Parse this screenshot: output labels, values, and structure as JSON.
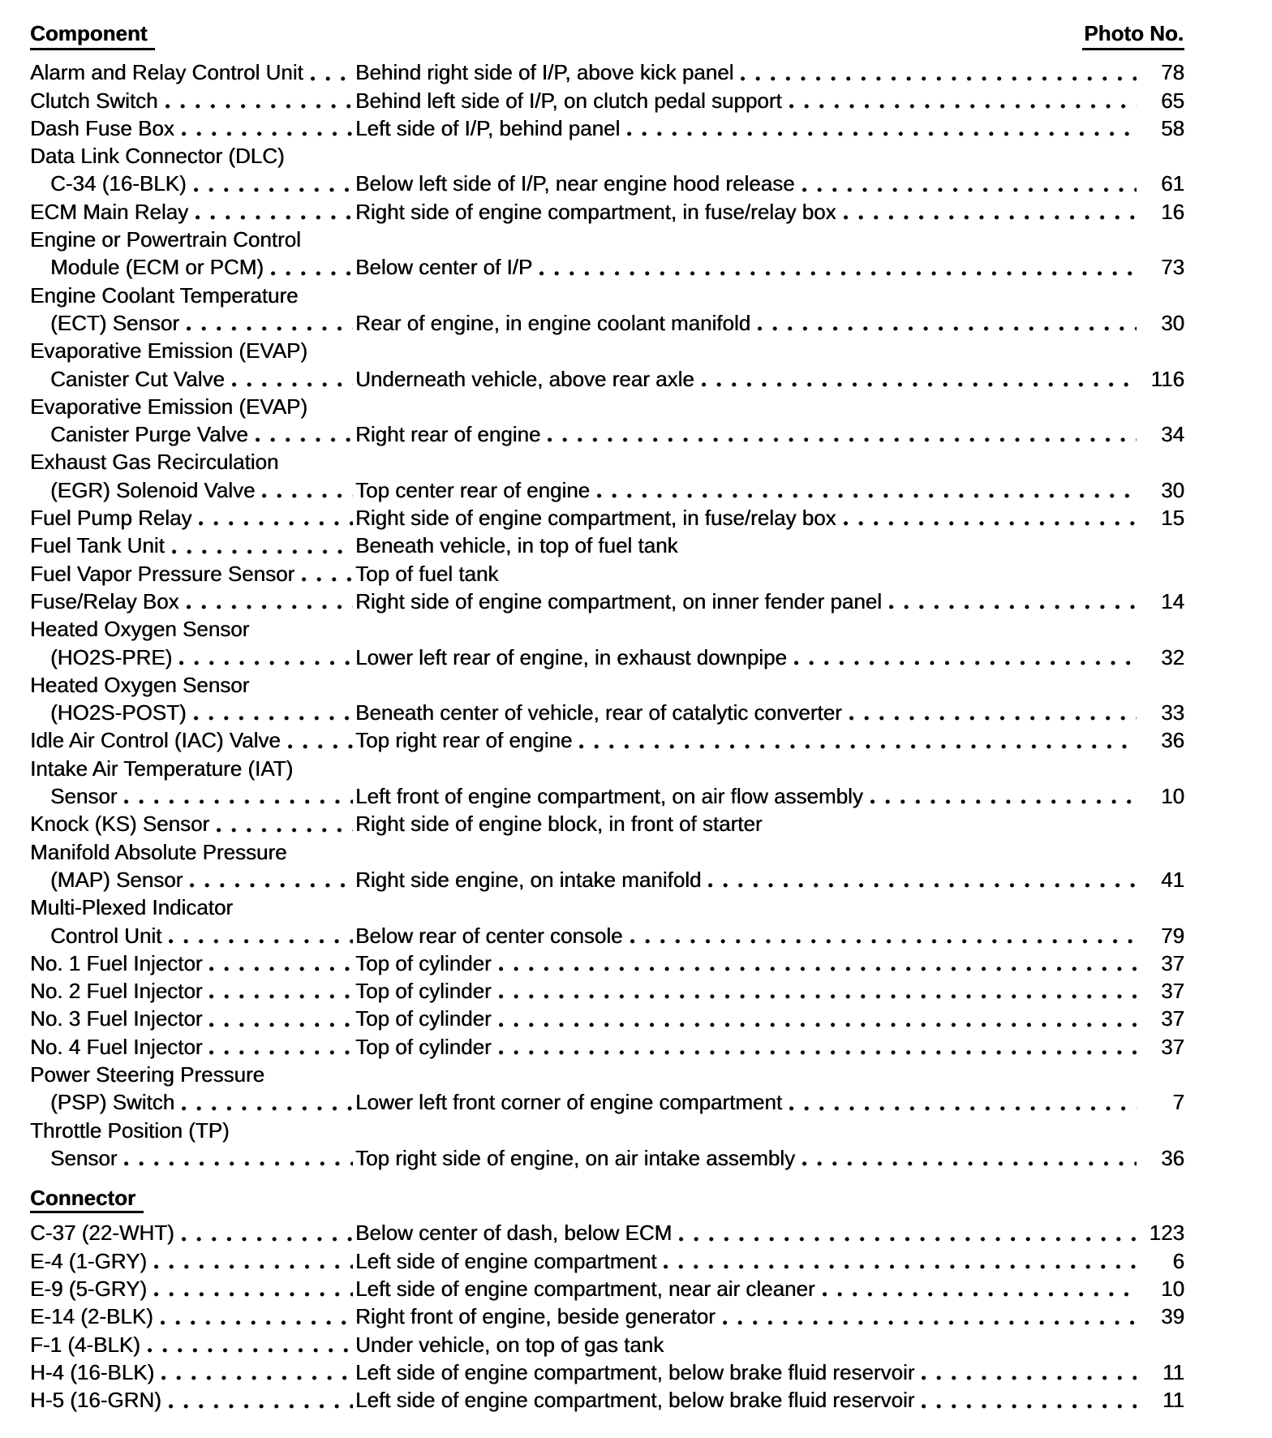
{
  "header": {
    "component_label": "Component",
    "photo_no_label": "Photo No."
  },
  "sections": [
    {
      "title": "",
      "rows": [
        {
          "name_lines": [
            "Alarm and Relay Control Unit"
          ],
          "location": "Behind right side of I/P, above kick panel",
          "photo": "78"
        },
        {
          "name_lines": [
            "Clutch Switch"
          ],
          "location": "Behind left side of I/P, on clutch pedal support",
          "photo": "65"
        },
        {
          "name_lines": [
            "Dash Fuse Box"
          ],
          "location": "Left side of I/P, behind panel",
          "photo": "58"
        },
        {
          "name_lines": [
            "Data Link Connector (DLC)",
            "C-34 (16-BLK)"
          ],
          "location": "Below left side of I/P, near engine hood release",
          "photo": "61"
        },
        {
          "name_lines": [
            "ECM Main Relay"
          ],
          "location": "Right side of engine compartment, in fuse/relay box",
          "photo": "16"
        },
        {
          "name_lines": [
            "Engine or Powertrain Control",
            "Module (ECM or PCM)"
          ],
          "location": "Below center of I/P",
          "photo": "73"
        },
        {
          "name_lines": [
            "Engine Coolant Temperature",
            "(ECT) Sensor"
          ],
          "location": "Rear of engine, in engine coolant manifold",
          "photo": "30"
        },
        {
          "name_lines": [
            "Evaporative Emission (EVAP)",
            "Canister Cut Valve"
          ],
          "location": "Underneath vehicle, above rear axle",
          "photo": "116"
        },
        {
          "name_lines": [
            "Evaporative Emission (EVAP)",
            "Canister Purge Valve"
          ],
          "location": "Right rear of engine",
          "photo": "34"
        },
        {
          "name_lines": [
            "Exhaust Gas Recirculation",
            "(EGR) Solenoid Valve"
          ],
          "location": "Top center rear of engine",
          "photo": "30"
        },
        {
          "name_lines": [
            "Fuel Pump Relay"
          ],
          "location": "Right side of engine compartment, in fuse/relay box",
          "photo": "15"
        },
        {
          "name_lines": [
            "Fuel Tank Unit"
          ],
          "location": "Beneath vehicle, in top of fuel tank",
          "photo": ""
        },
        {
          "name_lines": [
            "Fuel Vapor Pressure Sensor"
          ],
          "location": "Top of fuel tank",
          "photo": ""
        },
        {
          "name_lines": [
            "Fuse/Relay Box"
          ],
          "location": "Right side of engine compartment, on inner fender panel",
          "photo": "14"
        },
        {
          "name_lines": [
            "Heated Oxygen Sensor",
            "(HO2S-PRE)"
          ],
          "location": "Lower left rear of engine, in exhaust downpipe",
          "photo": "32"
        },
        {
          "name_lines": [
            "Heated Oxygen Sensor",
            "(HO2S-POST)"
          ],
          "location": "Beneath center of vehicle, rear of catalytic converter",
          "photo": "33"
        },
        {
          "name_lines": [
            "Idle Air Control (IAC) Valve"
          ],
          "location": "Top right rear of engine",
          "photo": "36"
        },
        {
          "name_lines": [
            "Intake Air Temperature (IAT)",
            "Sensor"
          ],
          "location": "Left front of engine compartment, on air flow assembly",
          "photo": "10"
        },
        {
          "name_lines": [
            "Knock (KS) Sensor"
          ],
          "location": "Right side of engine block, in front of starter",
          "photo": ""
        },
        {
          "name_lines": [
            "Manifold Absolute Pressure",
            "(MAP) Sensor"
          ],
          "location": "Right side engine, on intake manifold",
          "photo": "41"
        },
        {
          "name_lines": [
            "Multi-Plexed Indicator",
            "Control Unit"
          ],
          "location": "Below rear of center console",
          "photo": "79"
        },
        {
          "name_lines": [
            "No. 1 Fuel Injector"
          ],
          "location": "Top of cylinder",
          "photo": "37"
        },
        {
          "name_lines": [
            "No. 2 Fuel Injector"
          ],
          "location": "Top of cylinder",
          "photo": "37"
        },
        {
          "name_lines": [
            "No. 3 Fuel Injector"
          ],
          "location": "Top of cylinder",
          "photo": "37"
        },
        {
          "name_lines": [
            "No. 4 Fuel Injector"
          ],
          "location": "Top of cylinder",
          "photo": "37"
        },
        {
          "name_lines": [
            "Power Steering Pressure",
            "(PSP) Switch"
          ],
          "location": "Lower left front corner of engine compartment",
          "photo": "7"
        },
        {
          "name_lines": [
            "Throttle Position (TP)",
            "Sensor"
          ],
          "location": "Top right side of engine, on air intake assembly",
          "photo": "36"
        }
      ]
    },
    {
      "title": "Connector",
      "rows": [
        {
          "name_lines": [
            "C-37 (22-WHT)"
          ],
          "location": "Below center of dash, below ECM",
          "photo": "123"
        },
        {
          "name_lines": [
            "E-4 (1-GRY)"
          ],
          "location": "Left side of engine compartment",
          "photo": "6"
        },
        {
          "name_lines": [
            "E-9 (5-GRY)"
          ],
          "location": "Left side of engine compartment, near air cleaner",
          "photo": "10"
        },
        {
          "name_lines": [
            "E-14 (2-BLK)"
          ],
          "location": "Right front of engine, beside generator",
          "photo": "39"
        },
        {
          "name_lines": [
            "F-1 (4-BLK)"
          ],
          "location": "Under vehicle, on top of gas tank",
          "photo": ""
        },
        {
          "name_lines": [
            "H-4 (16-BLK)"
          ],
          "location": "Left side of engine compartment, below brake fluid reservoir",
          "photo": "11"
        },
        {
          "name_lines": [
            "H-5 (16-GRN)"
          ],
          "location": "Left side of engine compartment, below brake fluid reservoir",
          "photo": "11"
        }
      ]
    }
  ]
}
